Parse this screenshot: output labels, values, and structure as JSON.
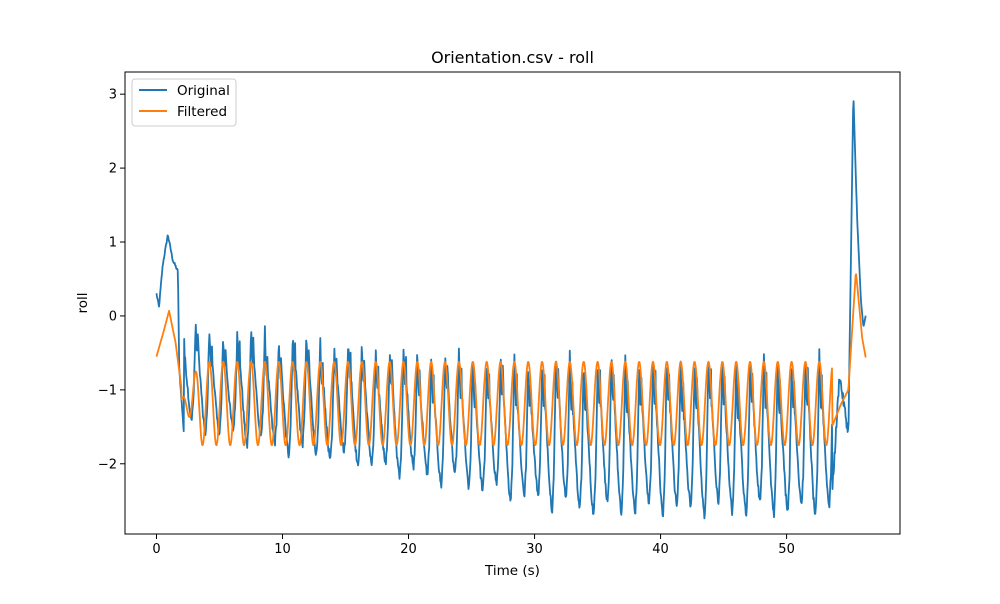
{
  "chart_data": {
    "type": "line",
    "title": "Orientation.csv - roll",
    "xlabel": "Time (s)",
    "ylabel": "roll",
    "xlim": [
      -2.5,
      59.0
    ],
    "ylim": [
      -2.95,
      3.3
    ],
    "x_ticks": [
      0,
      10,
      20,
      30,
      40,
      50
    ],
    "y_ticks": [
      -2,
      -1,
      0,
      1,
      2,
      3
    ],
    "x_tick_labels": [
      "0",
      "10",
      "20",
      "30",
      "40",
      "50"
    ],
    "y_tick_labels": [
      "−2",
      "−1",
      "0",
      "1",
      "2",
      "3"
    ],
    "grid": false,
    "legend_position": "upper-left",
    "oscillation": {
      "start_s": 2.0,
      "end_s": 53.6,
      "period_s": 1.1,
      "original_peak_range": [
        -0.15,
        -0.6
      ],
      "original_trough_range": [
        -1.5,
        -2.65
      ],
      "filtered_peak": -0.62,
      "filtered_trough": -1.75
    },
    "series": [
      {
        "name": "Original",
        "color": "#1f77b4",
        "key_points": [
          {
            "x": 0.0,
            "y": 0.3
          },
          {
            "x": 0.2,
            "y": 0.12
          },
          {
            "x": 0.5,
            "y": 0.7
          },
          {
            "x": 0.9,
            "y": 1.1
          },
          {
            "x": 1.3,
            "y": 0.75
          },
          {
            "x": 1.7,
            "y": 0.6
          },
          {
            "x": 1.8,
            "y": -0.7
          },
          {
            "x": 2.2,
            "y": -1.65
          },
          {
            "x": 53.6,
            "y": -2.45
          },
          {
            "x": 54.2,
            "y": -0.8
          },
          {
            "x": 54.9,
            "y": -1.6
          },
          {
            "x": 55.3,
            "y": 3.02
          },
          {
            "x": 55.6,
            "y": 1.3
          },
          {
            "x": 55.9,
            "y": 0.2
          },
          {
            "x": 56.1,
            "y": -0.15
          },
          {
            "x": 56.3,
            "y": 0.02
          }
        ]
      },
      {
        "name": "Filtered",
        "color": "#ff7f0e",
        "key_points": [
          {
            "x": 0.0,
            "y": -0.55
          },
          {
            "x": 0.5,
            "y": -0.25
          },
          {
            "x": 1.0,
            "y": 0.07
          },
          {
            "x": 1.5,
            "y": -0.35
          },
          {
            "x": 2.0,
            "y": -1.0
          },
          {
            "x": 53.6,
            "y": -1.5
          },
          {
            "x": 54.3,
            "y": -1.2
          },
          {
            "x": 54.9,
            "y": -1.0
          },
          {
            "x": 55.5,
            "y": 0.6
          },
          {
            "x": 56.0,
            "y": -0.3
          },
          {
            "x": 56.3,
            "y": -0.58
          }
        ]
      }
    ]
  }
}
